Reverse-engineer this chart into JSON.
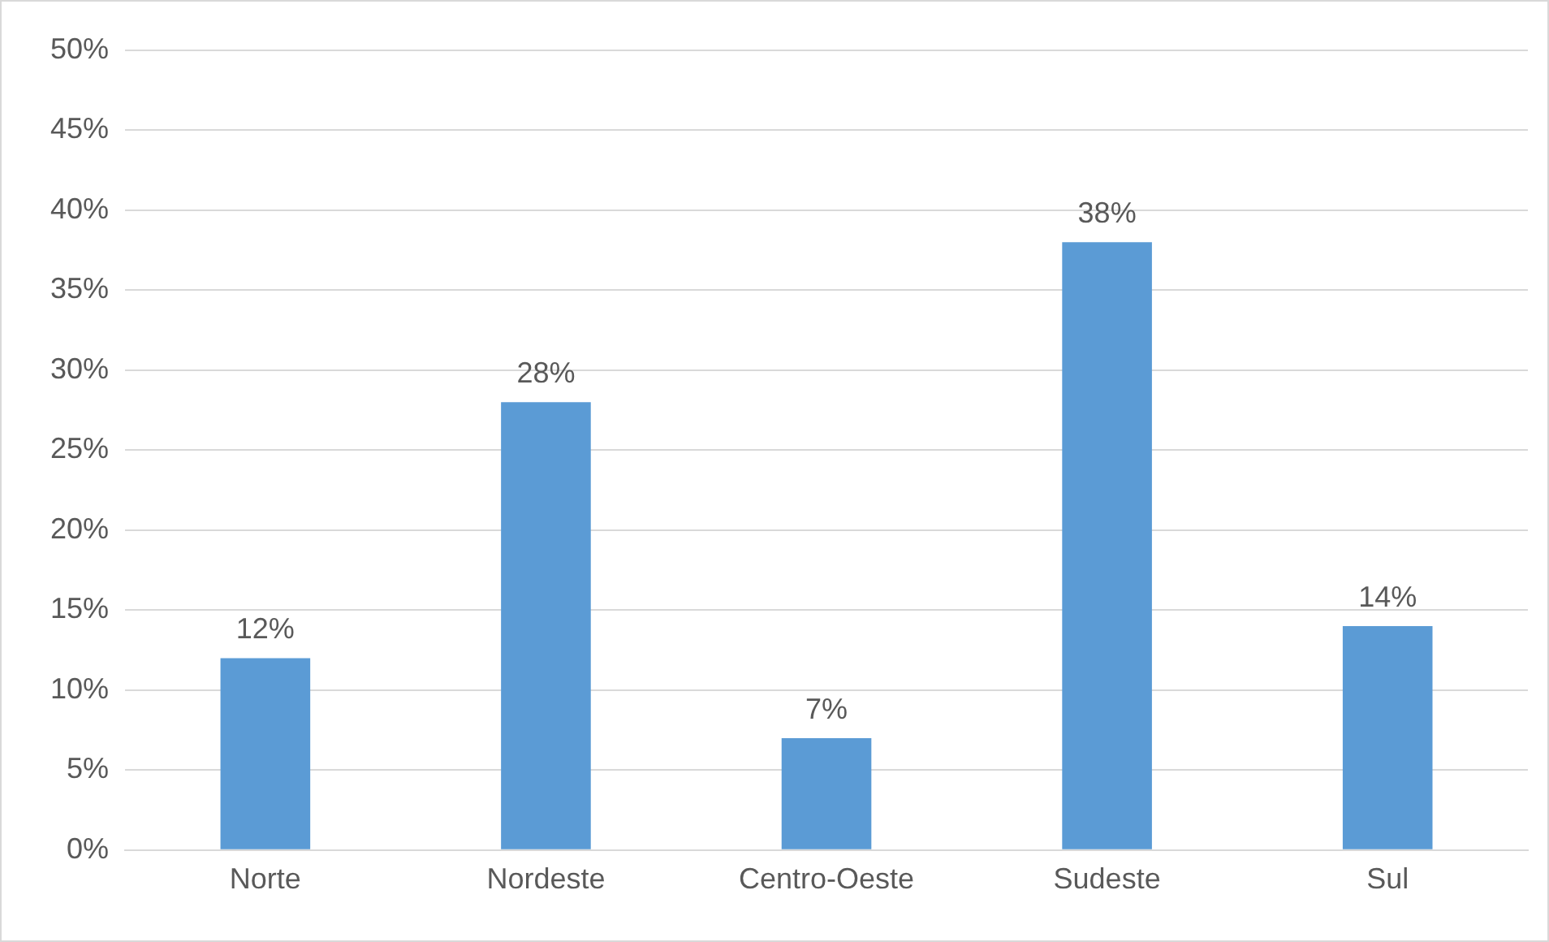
{
  "chart_data": {
    "type": "bar",
    "categories": [
      "Norte",
      "Nordeste",
      "Centro-Oeste",
      "Sudeste",
      "Sul"
    ],
    "values": [
      12,
      28,
      7,
      38,
      14
    ],
    "value_labels": [
      "12%",
      "28%",
      "7%",
      "38%",
      "14%"
    ],
    "color": "#5b9bd5",
    "ylim": [
      0,
      50
    ],
    "yticks": [
      {
        "value": 0,
        "label": "0%"
      },
      {
        "value": 5,
        "label": "5%"
      },
      {
        "value": 10,
        "label": "10%"
      },
      {
        "value": 15,
        "label": "15%"
      },
      {
        "value": 20,
        "label": "20%"
      },
      {
        "value": 25,
        "label": "25%"
      },
      {
        "value": 30,
        "label": "30%"
      },
      {
        "value": 35,
        "label": "35%"
      },
      {
        "value": 40,
        "label": "40%"
      },
      {
        "value": 45,
        "label": "45%"
      },
      {
        "value": 50,
        "label": "50%"
      }
    ],
    "grid": "y",
    "legend": false
  }
}
